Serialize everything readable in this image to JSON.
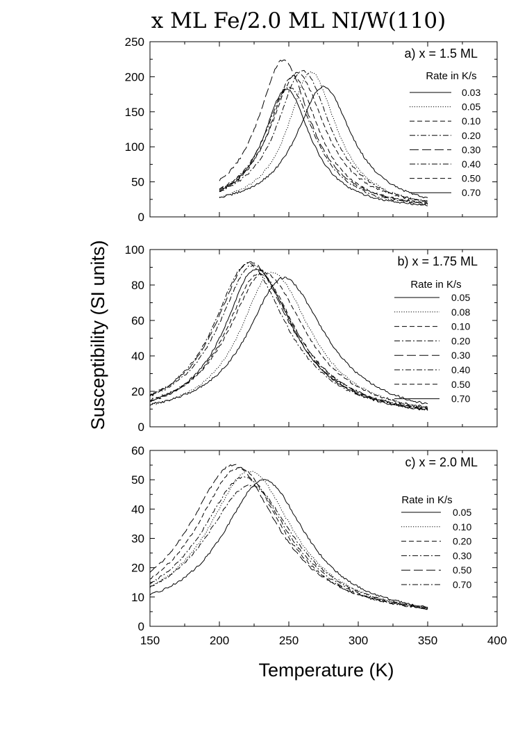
{
  "figure": {
    "title": "x ML Fe/2.0 ML NI/W(110)",
    "ylabel": "Susceptibility (SI units)",
    "xlabel": "Temperature (K)"
  },
  "chart_data": [
    {
      "type": "line",
      "panel_label": "a) x = 1.5 ML",
      "legend_title": "Rate in K/s",
      "legend_position": "top-right",
      "xlim": [
        150,
        400
      ],
      "ylim": [
        0,
        250
      ],
      "x_ticks": [
        150,
        200,
        250,
        300,
        350,
        400
      ],
      "y_ticks": [
        0,
        50,
        100,
        150,
        200,
        250
      ],
      "x_tick_labels_shown": false,
      "series": [
        {
          "name": "0.03",
          "peak_x": 248,
          "peak_y": 183,
          "style": "solid"
        },
        {
          "name": "0.05",
          "peak_x": 266,
          "peak_y": 207,
          "style": "dotted"
        },
        {
          "name": "0.10",
          "peak_x": 253,
          "peak_y": 201,
          "style": "dashed"
        },
        {
          "name": "0.20",
          "peak_x": 250,
          "peak_y": 185,
          "style": "dashdot"
        },
        {
          "name": "0.30",
          "peak_x": 246,
          "peak_y": 224,
          "style": "longdash"
        },
        {
          "name": "0.40",
          "peak_x": 260,
          "peak_y": 209,
          "style": "dashdot"
        },
        {
          "name": "0.50",
          "peak_x": 256,
          "peak_y": 205,
          "style": "dashed"
        },
        {
          "name": "0.70",
          "peak_x": 275,
          "peak_y": 186,
          "style": "solid"
        }
      ]
    },
    {
      "type": "line",
      "panel_label": "b) x = 1.75 ML",
      "legend_title": "Rate in K/s",
      "legend_position": "top-right",
      "xlim": [
        150,
        400
      ],
      "ylim": [
        0,
        100
      ],
      "x_ticks": [
        150,
        200,
        250,
        300,
        350,
        400
      ],
      "y_ticks": [
        0,
        20,
        40,
        60,
        80,
        100
      ],
      "x_tick_labels_shown": false,
      "series": [
        {
          "name": "0.05",
          "peak_x": 226,
          "peak_y": 89,
          "style": "solid"
        },
        {
          "name": "0.08",
          "peak_x": 238,
          "peak_y": 87,
          "style": "dotted"
        },
        {
          "name": "0.10",
          "peak_x": 228,
          "peak_y": 86,
          "style": "dashed"
        },
        {
          "name": "0.20",
          "peak_x": 220,
          "peak_y": 92,
          "style": "dashdot"
        },
        {
          "name": "0.30",
          "peak_x": 222,
          "peak_y": 93,
          "style": "longdash"
        },
        {
          "name": "0.40",
          "peak_x": 224,
          "peak_y": 91,
          "style": "dashdot"
        },
        {
          "name": "0.50",
          "peak_x": 232,
          "peak_y": 87,
          "style": "dashed"
        },
        {
          "name": "0.70",
          "peak_x": 246,
          "peak_y": 84,
          "style": "solid"
        }
      ]
    },
    {
      "type": "line",
      "panel_label": "c) x = 2.0 ML",
      "legend_title": "Rate in K/s",
      "legend_position": "right",
      "xlim": [
        150,
        400
      ],
      "ylim": [
        0,
        60
      ],
      "x_ticks": [
        150,
        200,
        250,
        300,
        350,
        400
      ],
      "y_ticks": [
        0,
        10,
        20,
        30,
        40,
        50,
        60
      ],
      "x_tick_labels_shown": true,
      "series": [
        {
          "name": "0.05",
          "peak_x": 232,
          "peak_y": 50,
          "style": "solid"
        },
        {
          "name": "0.10",
          "peak_x": 222,
          "peak_y": 53,
          "style": "dotted"
        },
        {
          "name": "0.20",
          "peak_x": 214,
          "peak_y": 54,
          "style": "dashed"
        },
        {
          "name": "0.30",
          "peak_x": 218,
          "peak_y": 51,
          "style": "dashdot"
        },
        {
          "name": "0.50",
          "peak_x": 210,
          "peak_y": 55,
          "style": "longdash"
        },
        {
          "name": "0.70",
          "peak_x": 222,
          "peak_y": 48,
          "style": "dashdot"
        }
      ]
    }
  ]
}
